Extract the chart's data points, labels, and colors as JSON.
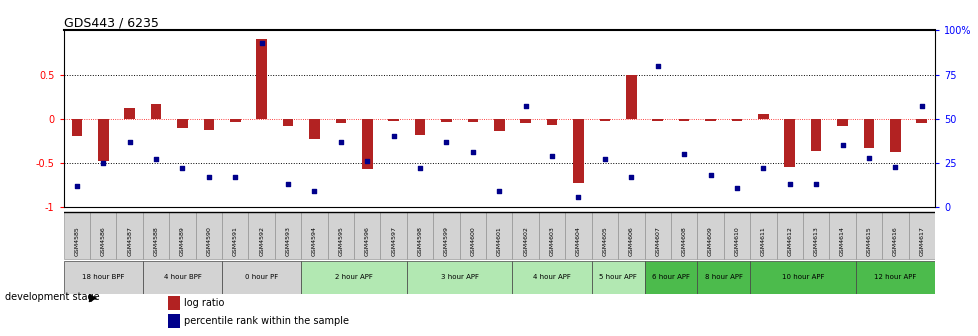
{
  "title": "GDS443 / 6235",
  "samples": [
    "GSM4585",
    "GSM4586",
    "GSM4587",
    "GSM4588",
    "GSM4589",
    "GSM4590",
    "GSM4591",
    "GSM4592",
    "GSM4593",
    "GSM4594",
    "GSM4595",
    "GSM4596",
    "GSM4597",
    "GSM4598",
    "GSM4599",
    "GSM4600",
    "GSM4601",
    "GSM4602",
    "GSM4603",
    "GSM4604",
    "GSM4605",
    "GSM4606",
    "GSM4607",
    "GSM4608",
    "GSM4609",
    "GSM4610",
    "GSM4611",
    "GSM4612",
    "GSM4613",
    "GSM4614",
    "GSM4615",
    "GSM4616",
    "GSM4617"
  ],
  "log_ratio": [
    -0.2,
    -0.48,
    0.12,
    0.17,
    -0.1,
    -0.13,
    -0.04,
    0.9,
    -0.08,
    -0.23,
    -0.05,
    -0.57,
    -0.03,
    -0.18,
    -0.04,
    -0.04,
    -0.14,
    -0.05,
    -0.07,
    -0.72,
    -0.03,
    0.5,
    -0.02,
    -0.02,
    -0.02,
    -0.02,
    0.05,
    -0.55,
    -0.36,
    -0.08,
    -0.33,
    -0.38,
    -0.05
  ],
  "percentile": [
    0.12,
    0.25,
    0.37,
    0.27,
    0.22,
    0.17,
    0.17,
    0.93,
    0.13,
    0.09,
    0.37,
    0.26,
    0.4,
    0.22,
    0.37,
    0.31,
    0.09,
    0.57,
    0.29,
    0.06,
    0.27,
    0.17,
    0.8,
    0.3,
    0.18,
    0.11,
    0.22,
    0.13,
    0.13,
    0.35,
    0.28,
    0.23,
    0.57
  ],
  "stages": [
    {
      "label": "18 hour BPF",
      "start": 0,
      "end": 3,
      "color": "#d3d3d3",
      "dark": false
    },
    {
      "label": "4 hour BPF",
      "start": 3,
      "end": 6,
      "color": "#d3d3d3",
      "dark": false
    },
    {
      "label": "0 hour PF",
      "start": 6,
      "end": 9,
      "color": "#d3d3d3",
      "dark": false
    },
    {
      "label": "2 hour APF",
      "start": 9,
      "end": 13,
      "color": "#b2e8b2",
      "dark": false
    },
    {
      "label": "3 hour APF",
      "start": 13,
      "end": 17,
      "color": "#b2e8b2",
      "dark": false
    },
    {
      "label": "4 hour APF",
      "start": 17,
      "end": 20,
      "color": "#b2e8b2",
      "dark": false
    },
    {
      "label": "5 hour APF",
      "start": 20,
      "end": 22,
      "color": "#b2e8b2",
      "dark": false
    },
    {
      "label": "6 hour APF",
      "start": 22,
      "end": 24,
      "color": "#4cbb4c",
      "dark": false
    },
    {
      "label": "8 hour APF",
      "start": 24,
      "end": 26,
      "color": "#4cbb4c",
      "dark": false
    },
    {
      "label": "10 hour APF",
      "start": 26,
      "end": 30,
      "color": "#4cbb4c",
      "dark": false
    },
    {
      "label": "12 hour APF",
      "start": 30,
      "end": 33,
      "color": "#4cbb4c",
      "dark": false
    }
  ],
  "bar_color": "#b22222",
  "dot_color": "#00008b",
  "ylim": [
    -1.0,
    1.0
  ],
  "yticks_left": [
    -1.0,
    -0.5,
    0.0,
    0.5
  ],
  "ytick_labels_left": [
    "-1",
    "-0.5",
    "0",
    "0.5"
  ],
  "yticks_right": [
    0,
    25,
    50,
    75,
    100
  ],
  "ytick_labels_right": [
    "0",
    "25",
    "50",
    "75",
    "100%"
  ]
}
